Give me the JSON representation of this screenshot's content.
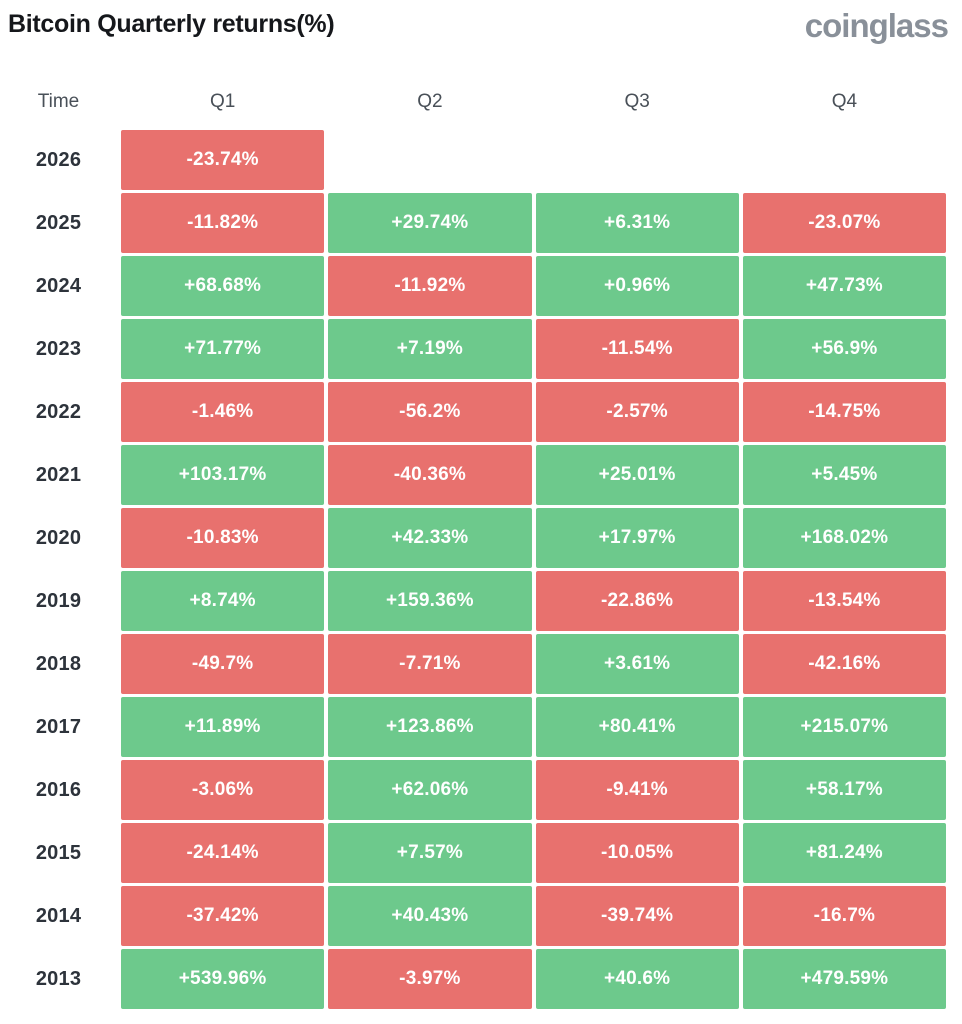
{
  "header": {
    "title": "Bitcoin Quarterly returns(%)",
    "logo": "coinglass"
  },
  "table": {
    "columns": [
      "Time",
      "Q1",
      "Q2",
      "Q3",
      "Q4"
    ],
    "rows": [
      {
        "year": "2026",
        "values": [
          "-23.74%",
          "",
          "",
          ""
        ]
      },
      {
        "year": "2025",
        "values": [
          "-11.82%",
          "+29.74%",
          "+6.31%",
          "-23.07%"
        ]
      },
      {
        "year": "2024",
        "values": [
          "+68.68%",
          "-11.92%",
          "+0.96%",
          "+47.73%"
        ]
      },
      {
        "year": "2023",
        "values": [
          "+71.77%",
          "+7.19%",
          "-11.54%",
          "+56.9%"
        ]
      },
      {
        "year": "2022",
        "values": [
          "-1.46%",
          "-56.2%",
          "-2.57%",
          "-14.75%"
        ]
      },
      {
        "year": "2021",
        "values": [
          "+103.17%",
          "-40.36%",
          "+25.01%",
          "+5.45%"
        ]
      },
      {
        "year": "2020",
        "values": [
          "-10.83%",
          "+42.33%",
          "+17.97%",
          "+168.02%"
        ]
      },
      {
        "year": "2019",
        "values": [
          "+8.74%",
          "+159.36%",
          "-22.86%",
          "-13.54%"
        ]
      },
      {
        "year": "2018",
        "values": [
          "-49.7%",
          "-7.71%",
          "+3.61%",
          "-42.16%"
        ]
      },
      {
        "year": "2017",
        "values": [
          "+11.89%",
          "+123.86%",
          "+80.41%",
          "+215.07%"
        ]
      },
      {
        "year": "2016",
        "values": [
          "-3.06%",
          "+62.06%",
          "-9.41%",
          "+58.17%"
        ]
      },
      {
        "year": "2015",
        "values": [
          "-24.14%",
          "+7.57%",
          "-10.05%",
          "+81.24%"
        ]
      },
      {
        "year": "2014",
        "values": [
          "-37.42%",
          "+40.43%",
          "-39.74%",
          "-16.7%"
        ]
      },
      {
        "year": "2013",
        "values": [
          "+539.96%",
          "-3.97%",
          "+40.6%",
          "+479.59%"
        ]
      }
    ]
  },
  "colors": {
    "positive": "#6dc98c",
    "negative": "#e8716e",
    "cell_text": "#ffffff",
    "year_text": "#2d333b",
    "header_text": "#495058",
    "logo_text": "#899099"
  },
  "chart_data": {
    "type": "heatmap",
    "title": "Bitcoin Quarterly returns(%)",
    "x_categories": [
      "Q1",
      "Q2",
      "Q3",
      "Q4"
    ],
    "y_categories": [
      "2026",
      "2025",
      "2024",
      "2023",
      "2022",
      "2021",
      "2020",
      "2019",
      "2018",
      "2017",
      "2016",
      "2015",
      "2014",
      "2013"
    ],
    "units": "%",
    "values": [
      [
        -23.74,
        null,
        null,
        null
      ],
      [
        -11.82,
        29.74,
        6.31,
        -23.07
      ],
      [
        68.68,
        -11.92,
        0.96,
        47.73
      ],
      [
        71.77,
        7.19,
        -11.54,
        56.9
      ],
      [
        -1.46,
        -56.2,
        -2.57,
        -14.75
      ],
      [
        103.17,
        -40.36,
        25.01,
        5.45
      ],
      [
        -10.83,
        42.33,
        17.97,
        168.02
      ],
      [
        8.74,
        159.36,
        -22.86,
        -13.54
      ],
      [
        -49.7,
        -7.71,
        3.61,
        -42.16
      ],
      [
        11.89,
        123.86,
        80.41,
        215.07
      ],
      [
        -3.06,
        62.06,
        -9.41,
        58.17
      ],
      [
        -24.14,
        7.57,
        -10.05,
        81.24
      ],
      [
        -37.42,
        40.43,
        -39.74,
        -16.7
      ],
      [
        539.96,
        -3.97,
        40.6,
        479.59
      ]
    ],
    "color_rule": "negative=red #e8716e, positive=green #6dc98c",
    "legend": "none",
    "grid": "white gaps between cells"
  }
}
